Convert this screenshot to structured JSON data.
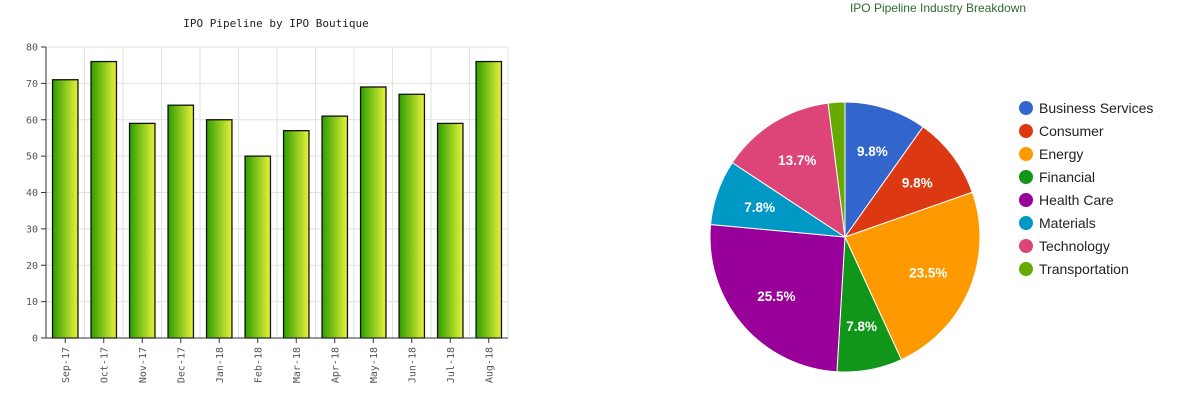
{
  "chart_data": [
    {
      "type": "bar",
      "title": "IPO Pipeline by IPO Boutique",
      "categories": [
        "Sep-17",
        "Oct-17",
        "Nov-17",
        "Dec-17",
        "Jan-18",
        "Feb-18",
        "Mar-18",
        "Apr-18",
        "May-18",
        "Jun-18",
        "Jul-18",
        "Aug-18"
      ],
      "values": [
        71,
        76,
        59,
        64,
        60,
        50,
        57,
        61,
        69,
        67,
        59,
        76
      ],
      "ylim": [
        0,
        80
      ],
      "yticks": [
        "0",
        "10",
        "20",
        "30",
        "40",
        "50",
        "60",
        "70",
        "80"
      ],
      "grid": true,
      "colors": {
        "bar_left": "#2e9e00",
        "bar_right": "#e8f23a",
        "outline": "#111111"
      }
    },
    {
      "type": "pie",
      "title": "IPO Pipeline Industry Breakdown",
      "legend_position": "right",
      "slices": [
        {
          "name": "Business Services",
          "value": 9.8,
          "label": "9.8%",
          "color": "#3366cc"
        },
        {
          "name": "Consumer",
          "value": 9.8,
          "label": "9.8%",
          "color": "#dc3912"
        },
        {
          "name": "Energy",
          "value": 23.5,
          "label": "23.5%",
          "color": "#ff9900"
        },
        {
          "name": "Financial",
          "value": 7.8,
          "label": "7.8%",
          "color": "#109618"
        },
        {
          "name": "Health Care",
          "value": 25.5,
          "label": "25.5%",
          "color": "#990099"
        },
        {
          "name": "Materials",
          "value": 7.8,
          "label": "7.8%",
          "color": "#0099c6"
        },
        {
          "name": "Technology",
          "value": 13.7,
          "label": "13.7%",
          "color": "#dd4477"
        },
        {
          "name": "Transportation",
          "value": 2.0,
          "label": "",
          "color": "#66aa00"
        }
      ]
    }
  ]
}
